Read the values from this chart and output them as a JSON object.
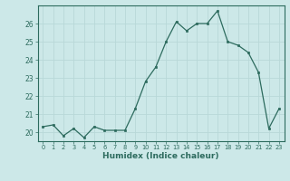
{
  "x": [
    0,
    1,
    2,
    3,
    4,
    5,
    6,
    7,
    8,
    9,
    10,
    11,
    12,
    13,
    14,
    15,
    16,
    17,
    18,
    19,
    20,
    21,
    22,
    23
  ],
  "y": [
    20.3,
    20.4,
    19.8,
    20.2,
    19.7,
    20.3,
    20.1,
    20.1,
    20.1,
    21.3,
    22.8,
    23.6,
    25.0,
    26.1,
    25.6,
    26.0,
    26.0,
    26.7,
    25.0,
    24.8,
    24.4,
    23.3,
    20.2,
    21.3
  ],
  "xlabel": "Humidex (Indice chaleur)",
  "ylim": [
    19.5,
    27.0
  ],
  "xlim": [
    -0.5,
    23.5
  ],
  "yticks": [
    20,
    21,
    22,
    23,
    24,
    25,
    26
  ],
  "xticks": [
    0,
    1,
    2,
    3,
    4,
    5,
    6,
    7,
    8,
    9,
    10,
    11,
    12,
    13,
    14,
    15,
    16,
    17,
    18,
    19,
    20,
    21,
    22,
    23
  ],
  "line_color": "#2d6b5e",
  "marker_color": "#2d6b5e",
  "bg_color": "#cce8e8",
  "grid_color": "#b8d8d8",
  "plot_bg": "#cce8e8"
}
